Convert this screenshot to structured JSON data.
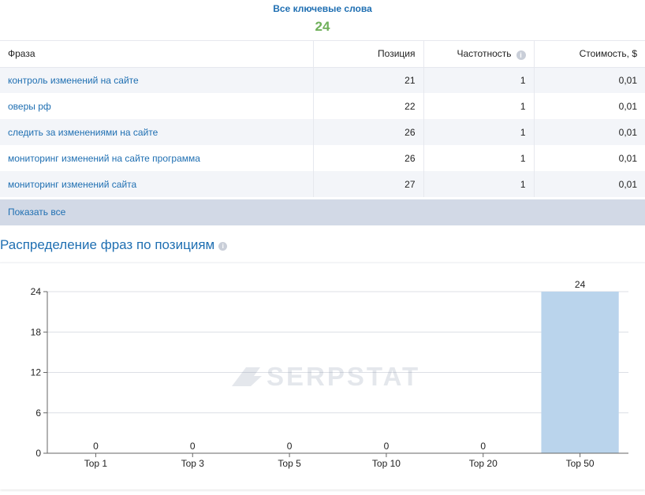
{
  "keywords": {
    "title": "Все ключевые слова",
    "count": "24"
  },
  "table": {
    "headers": {
      "phrase": "Фраза",
      "position": "Позиция",
      "frequency": "Частотность",
      "cost": "Стоимость, $"
    },
    "info_icon": "info-icon",
    "rows": [
      {
        "phrase": "контроль изменений на сайте",
        "position": "21",
        "frequency": "1",
        "cost": "0,01"
      },
      {
        "phrase": "оверы рф",
        "position": "22",
        "frequency": "1",
        "cost": "0,01"
      },
      {
        "phrase": "следить за изменениями на сайте",
        "position": "26",
        "frequency": "1",
        "cost": "0,01"
      },
      {
        "phrase": "мониторинг изменений на сайте программа",
        "position": "26",
        "frequency": "1",
        "cost": "0,01"
      },
      {
        "phrase": "мониторинг изменений сайта",
        "position": "27",
        "frequency": "1",
        "cost": "0,01"
      }
    ],
    "show_all": "Показать все"
  },
  "section": {
    "title": "Распределение фраз по позициям"
  },
  "watermark": "SERPSTAT",
  "colors": {
    "accent": "#1f6fb2",
    "count": "#6fb05a",
    "bar": "#bad4ec"
  },
  "chart_data": {
    "type": "bar",
    "categories": [
      "Top 1",
      "Top 3",
      "Top 5",
      "Top 10",
      "Top 20",
      "Top 50"
    ],
    "values": [
      0,
      0,
      0,
      0,
      0,
      24
    ],
    "yticks": [
      0,
      6,
      12,
      18,
      24
    ],
    "ylim": [
      0,
      24
    ],
    "grid": true,
    "legend": "none",
    "data_labels": true
  }
}
